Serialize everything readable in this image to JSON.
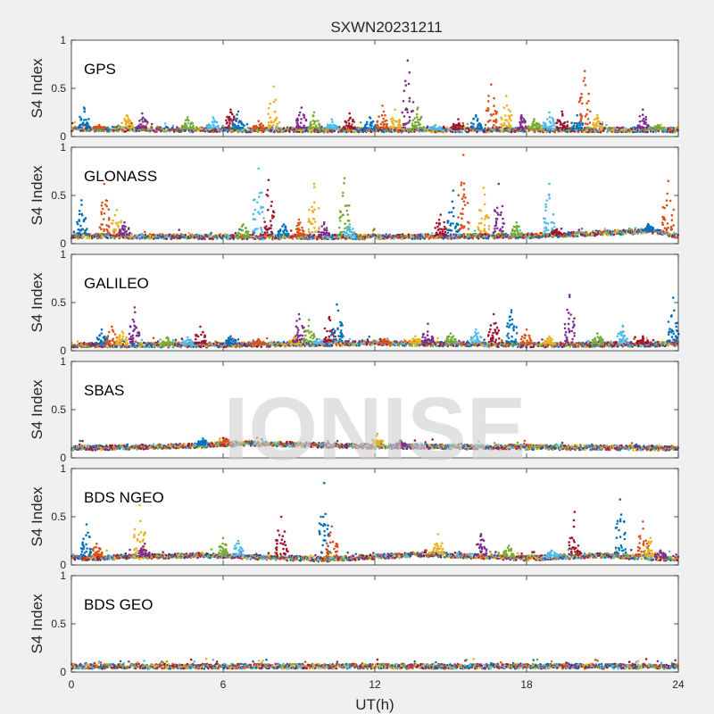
{
  "figure": {
    "title": "SXWN20231211",
    "watermark": "IONISE",
    "colors": [
      "#0072BD",
      "#D95319",
      "#EDB120",
      "#7E2F8E",
      "#77AC30",
      "#4DBEEE",
      "#A2142F"
    ]
  },
  "chart_data": [
    {
      "type": "scatter",
      "panel_label": "GPS",
      "ylabel": "S4 Index",
      "xlabel": "",
      "xlim": [
        0,
        24
      ],
      "ylim": [
        0,
        1
      ],
      "xticks": [
        0,
        6,
        12,
        18,
        24
      ],
      "yticks": [
        0,
        0.5,
        1
      ],
      "ytick_labels": [
        "0",
        "0.5",
        "1"
      ],
      "grid": false,
      "baseline": 0.07,
      "baseline_profile": [
        [
          0,
          0.08
        ],
        [
          6,
          0.07
        ],
        [
          12,
          0.07
        ],
        [
          18,
          0.07
        ],
        [
          24,
          0.07
        ]
      ],
      "spikes": [
        [
          0.5,
          0.3
        ],
        [
          1.1,
          0.12
        ],
        [
          2.2,
          0.22
        ],
        [
          2.8,
          0.24
        ],
        [
          4.6,
          0.2
        ],
        [
          5.6,
          0.2
        ],
        [
          6.3,
          0.28
        ],
        [
          6.6,
          0.26
        ],
        [
          7.4,
          0.16
        ],
        [
          8.0,
          0.52
        ],
        [
          9.1,
          0.3
        ],
        [
          9.6,
          0.25
        ],
        [
          10.3,
          0.18
        ],
        [
          11.0,
          0.24
        ],
        [
          11.8,
          0.2
        ],
        [
          12.3,
          0.32
        ],
        [
          12.8,
          0.28
        ],
        [
          13.3,
          0.79
        ],
        [
          13.7,
          0.3
        ],
        [
          14.4,
          0.12
        ],
        [
          15.3,
          0.18
        ],
        [
          16.0,
          0.22
        ],
        [
          16.6,
          0.54
        ],
        [
          17.2,
          0.42
        ],
        [
          17.8,
          0.22
        ],
        [
          18.3,
          0.18
        ],
        [
          18.9,
          0.25
        ],
        [
          19.4,
          0.26
        ],
        [
          20.0,
          0.22
        ],
        [
          20.3,
          0.68
        ],
        [
          20.8,
          0.22
        ],
        [
          22.6,
          0.28
        ],
        [
          23.2,
          0.12
        ]
      ]
    },
    {
      "type": "scatter",
      "panel_label": "GLONASS",
      "ylabel": "S4 Index",
      "xlabel": "",
      "xlim": [
        0,
        24
      ],
      "ylim": [
        0,
        1
      ],
      "xticks": [
        0,
        6,
        12,
        18,
        24
      ],
      "yticks": [
        0,
        0.5,
        1
      ],
      "ytick_labels": [
        "0",
        "0.5",
        "1"
      ],
      "grid": false,
      "baseline": 0.07,
      "baseline_profile": [
        [
          0,
          0.08
        ],
        [
          6,
          0.07
        ],
        [
          12,
          0.07
        ],
        [
          18,
          0.08
        ],
        [
          23,
          0.13
        ],
        [
          24,
          0.08
        ]
      ],
      "spikes": [
        [
          0.4,
          0.45
        ],
        [
          1.3,
          0.62
        ],
        [
          1.8,
          0.35
        ],
        [
          2.1,
          0.22
        ],
        [
          6.8,
          0.2
        ],
        [
          7.4,
          0.78
        ],
        [
          7.8,
          0.66
        ],
        [
          8.4,
          0.2
        ],
        [
          9.0,
          0.25
        ],
        [
          9.6,
          0.62
        ],
        [
          10.0,
          0.22
        ],
        [
          10.8,
          0.68
        ],
        [
          11.0,
          0.2
        ],
        [
          14.6,
          0.3
        ],
        [
          15.1,
          0.55
        ],
        [
          15.5,
          0.92
        ],
        [
          16.3,
          0.58
        ],
        [
          16.9,
          0.62
        ],
        [
          17.6,
          0.22
        ],
        [
          18.9,
          0.62
        ],
        [
          19.2,
          0.15
        ],
        [
          22.8,
          0.2
        ],
        [
          23.6,
          0.65
        ]
      ]
    },
    {
      "type": "scatter",
      "panel_label": "GALILEO",
      "ylabel": "S4 Index",
      "xlabel": "",
      "xlim": [
        0,
        24
      ],
      "ylim": [
        0,
        1
      ],
      "xticks": [
        0,
        6,
        12,
        18,
        24
      ],
      "yticks": [
        0,
        0.5,
        1
      ],
      "ytick_labels": [
        "0",
        "0.5",
        "1"
      ],
      "grid": false,
      "baseline": 0.06,
      "baseline_profile": [
        [
          0,
          0.06
        ],
        [
          6,
          0.06
        ],
        [
          12,
          0.08
        ],
        [
          18,
          0.06
        ],
        [
          24,
          0.07
        ]
      ],
      "spikes": [
        [
          1.2,
          0.22
        ],
        [
          1.6,
          0.25
        ],
        [
          2.0,
          0.2
        ],
        [
          2.5,
          0.45
        ],
        [
          3.8,
          0.14
        ],
        [
          4.6,
          0.14
        ],
        [
          5.1,
          0.25
        ],
        [
          6.3,
          0.15
        ],
        [
          7.4,
          0.12
        ],
        [
          8.8,
          0.14
        ],
        [
          9.0,
          0.38
        ],
        [
          9.4,
          0.32
        ],
        [
          9.8,
          0.12
        ],
        [
          10.2,
          0.35
        ],
        [
          10.5,
          0.48
        ],
        [
          12.4,
          0.12
        ],
        [
          13.6,
          0.15
        ],
        [
          14.1,
          0.28
        ],
        [
          15.0,
          0.18
        ],
        [
          16.0,
          0.22
        ],
        [
          16.7,
          0.38
        ],
        [
          17.4,
          0.42
        ],
        [
          18.0,
          0.22
        ],
        [
          18.9,
          0.15
        ],
        [
          19.7,
          0.58
        ],
        [
          20.8,
          0.18
        ],
        [
          21.8,
          0.26
        ],
        [
          22.6,
          0.15
        ],
        [
          23.8,
          0.55
        ]
      ]
    },
    {
      "type": "scatter",
      "panel_label": "SBAS",
      "ylabel": "S4 Index",
      "xlabel": "",
      "xlim": [
        0,
        24
      ],
      "ylim": [
        0,
        1
      ],
      "xticks": [
        0,
        6,
        12,
        18,
        24
      ],
      "yticks": [
        0,
        0.5,
        1
      ],
      "ytick_labels": [
        "0",
        "0.5",
        "1"
      ],
      "grid": false,
      "baseline": 0.11,
      "baseline_profile": [
        [
          0,
          0.1
        ],
        [
          4,
          0.12
        ],
        [
          7,
          0.15
        ],
        [
          12,
          0.12
        ],
        [
          18,
          0.11
        ],
        [
          24,
          0.1
        ]
      ],
      "spikes": [
        [
          5.2,
          0.2
        ],
        [
          6.1,
          0.2
        ],
        [
          12.1,
          0.25
        ],
        [
          13.0,
          0.18
        ]
      ]
    },
    {
      "type": "scatter",
      "panel_label": "BDS NGEO",
      "ylabel": "S4 Index",
      "xlabel": "",
      "xlim": [
        0,
        24
      ],
      "ylim": [
        0,
        1
      ],
      "xticks": [
        0,
        6,
        12,
        18,
        24
      ],
      "yticks": [
        0,
        0.5,
        1
      ],
      "ytick_labels": [
        "0",
        "0.5",
        "1"
      ],
      "grid": false,
      "baseline": 0.07,
      "baseline_profile": [
        [
          0,
          0.07
        ],
        [
          5,
          0.1
        ],
        [
          10,
          0.06
        ],
        [
          14,
          0.11
        ],
        [
          18,
          0.07
        ],
        [
          21,
          0.1
        ],
        [
          24,
          0.06
        ]
      ],
      "spikes": [
        [
          0.6,
          0.42
        ],
        [
          1.0,
          0.22
        ],
        [
          2.7,
          0.62
        ],
        [
          2.9,
          0.22
        ],
        [
          6.0,
          0.28
        ],
        [
          6.6,
          0.25
        ],
        [
          8.3,
          0.5
        ],
        [
          10.0,
          0.85
        ],
        [
          10.3,
          0.4
        ],
        [
          14.5,
          0.32
        ],
        [
          16.2,
          0.32
        ],
        [
          17.3,
          0.2
        ],
        [
          19.0,
          0.15
        ],
        [
          19.9,
          0.55
        ],
        [
          21.7,
          0.68
        ],
        [
          22.6,
          0.45
        ],
        [
          22.9,
          0.28
        ],
        [
          23.3,
          0.15
        ]
      ]
    },
    {
      "type": "scatter",
      "panel_label": "BDS GEO",
      "ylabel": "S4 Index",
      "xlabel": "UT(h)",
      "xlim": [
        0,
        24
      ],
      "ylim": [
        0,
        1
      ],
      "xticks": [
        0,
        6,
        12,
        18,
        24
      ],
      "yticks": [
        0,
        0.5,
        1
      ],
      "ytick_labels": [
        "0",
        "0.5",
        "1"
      ],
      "grid": false,
      "baseline": 0.06,
      "baseline_profile": [
        [
          0,
          0.06
        ],
        [
          24,
          0.06
        ]
      ],
      "spikes": []
    }
  ]
}
